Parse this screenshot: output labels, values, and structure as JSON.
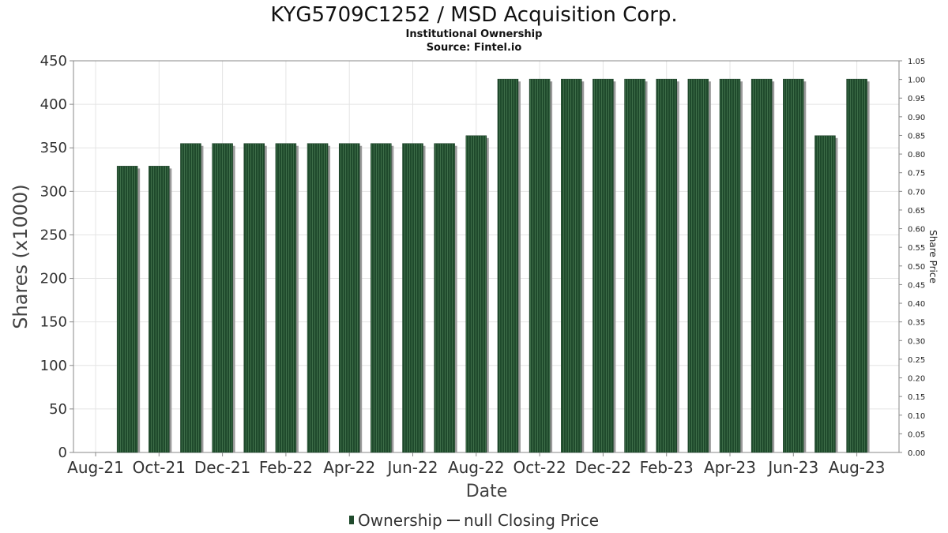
{
  "chart_data": {
    "type": "bar",
    "title": "KYG5709C1252 / MSD Acquisition Corp.",
    "subtitle": "Institutional Ownership",
    "source": "Source: Fintel.io",
    "xlabel": "Date",
    "ylabel": "Shares (x1000)",
    "y2label": "Share Price",
    "ylim": [
      0,
      450
    ],
    "y2lim": [
      0,
      1.05
    ],
    "yticks": [
      "0",
      "50",
      "100",
      "150",
      "200",
      "250",
      "300",
      "350",
      "400",
      "450"
    ],
    "y2ticks": [
      "0.00",
      "0.05",
      "0.10",
      "0.15",
      "0.20",
      "0.25",
      "0.30",
      "0.35",
      "0.40",
      "0.45",
      "0.50",
      "0.55",
      "0.60",
      "0.65",
      "0.70",
      "0.75",
      "0.80",
      "0.85",
      "0.90",
      "0.95",
      "1.00",
      "1.05"
    ],
    "xtick_labels": [
      "Aug-21",
      "Oct-21",
      "Dec-21",
      "Feb-22",
      "Apr-22",
      "Jun-22",
      "Aug-22",
      "Oct-22",
      "Dec-22",
      "Feb-23",
      "Apr-23",
      "Jun-23",
      "Aug-23"
    ],
    "categories": [
      "Aug-21",
      "Sep-21",
      "Oct-21",
      "Nov-21",
      "Dec-21",
      "Jan-22",
      "Feb-22",
      "Mar-22",
      "Apr-22",
      "May-22",
      "Jun-22",
      "Jul-22",
      "Aug-22",
      "Sep-22",
      "Oct-22",
      "Nov-22",
      "Dec-22",
      "Jan-23",
      "Feb-23",
      "Mar-23",
      "Apr-23",
      "May-23",
      "Jun-23",
      "Jul-23",
      "Aug-23"
    ],
    "series": [
      {
        "name": "Ownership",
        "values": [
          null,
          329,
          329,
          355,
          355,
          355,
          355,
          355,
          355,
          355,
          355,
          355,
          364,
          429,
          429,
          429,
          429,
          429,
          429,
          429,
          429,
          429,
          429,
          364,
          429
        ]
      }
    ],
    "legend": {
      "placement": "bottom",
      "items": [
        "Ownership",
        "null Closing Price"
      ]
    },
    "grid": true,
    "colors": {
      "bar": "#1f4a2c",
      "bar_stripe": "#3d6d48",
      "bar_shadow": "#9a9a9a",
      "grid": "#e4e4e4",
      "axis": "#888888"
    }
  }
}
